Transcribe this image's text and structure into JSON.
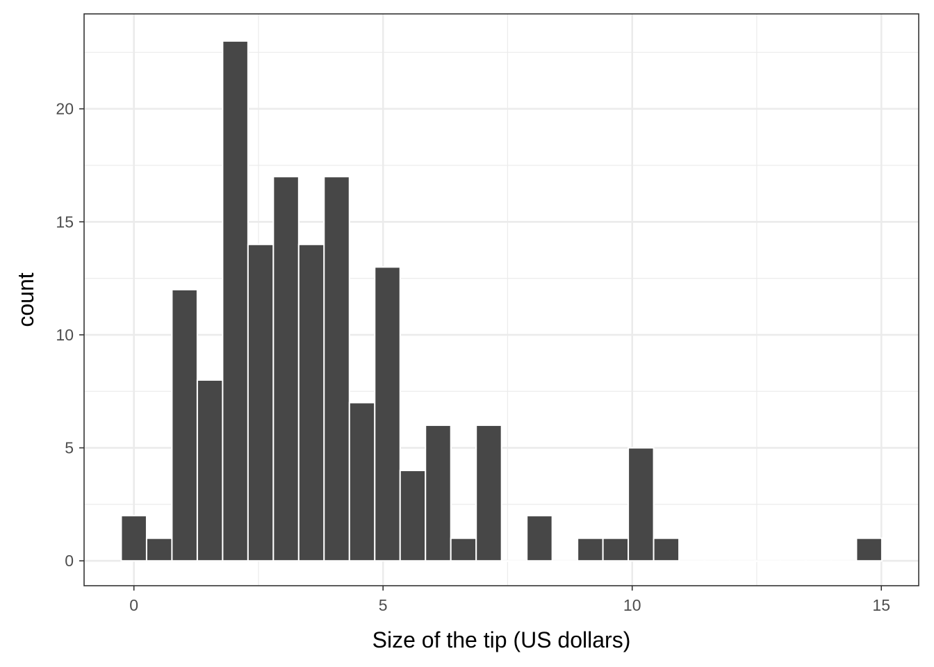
{
  "chart_data": {
    "type": "bar",
    "subtype": "histogram",
    "xlabel": "Size of the tip (US dollars)",
    "ylabel": "count",
    "title": "",
    "xlim": [
      -1,
      15.75
    ],
    "ylim": [
      -1.1,
      24.2
    ],
    "x_ticks": [
      0,
      5,
      10,
      15
    ],
    "y_ticks": [
      0,
      5,
      10,
      15,
      20
    ],
    "grid": true,
    "bin_width": 0.5088,
    "bins": [
      {
        "center": 0.0,
        "count": 2
      },
      {
        "center": 0.5088,
        "count": 1
      },
      {
        "center": 1.0176,
        "count": 12
      },
      {
        "center": 1.5264,
        "count": 8
      },
      {
        "center": 2.0352,
        "count": 23
      },
      {
        "center": 2.544,
        "count": 14
      },
      {
        "center": 3.0528,
        "count": 17
      },
      {
        "center": 3.5616,
        "count": 14
      },
      {
        "center": 4.0704,
        "count": 17
      },
      {
        "center": 4.5792,
        "count": 7
      },
      {
        "center": 5.088,
        "count": 13
      },
      {
        "center": 5.5968,
        "count": 4
      },
      {
        "center": 6.1056,
        "count": 6
      },
      {
        "center": 6.6144,
        "count": 1
      },
      {
        "center": 7.1232,
        "count": 6
      },
      {
        "center": 7.632,
        "count": 0
      },
      {
        "center": 8.1408,
        "count": 2
      },
      {
        "center": 8.6496,
        "count": 0
      },
      {
        "center": 9.1584,
        "count": 1
      },
      {
        "center": 9.6672,
        "count": 1
      },
      {
        "center": 10.176,
        "count": 5
      },
      {
        "center": 10.6848,
        "count": 1
      },
      {
        "center": 11.1936,
        "count": 0
      },
      {
        "center": 11.7024,
        "count": 0
      },
      {
        "center": 12.2112,
        "count": 0
      },
      {
        "center": 12.72,
        "count": 0
      },
      {
        "center": 13.2288,
        "count": 0
      },
      {
        "center": 13.7376,
        "count": 0
      },
      {
        "center": 14.2464,
        "count": 0
      },
      {
        "center": 14.7552,
        "count": 1
      }
    ],
    "bar_color": "#474747",
    "bar_edge_color": "#ffffff",
    "grid_major_color": "#ebebeb",
    "grid_minor_color": "#ebebeb",
    "panel_border_color": "#333333"
  }
}
